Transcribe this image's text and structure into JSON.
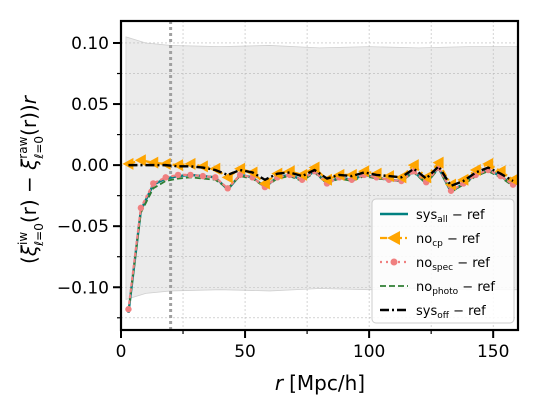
{
  "chart_data": {
    "type": "line",
    "xlabel_var": "r",
    "xlabel_unit": "[Mpc/h]",
    "ylabel_parts": {
      "open": "(",
      "xi": "ξ",
      "sup1": "iw",
      "sub1": "ℓ=0",
      "mid": "(r) − ",
      "sup2": "raw",
      "sub2": "ℓ=0",
      "close": "(r))",
      "r": "r"
    },
    "xlim": [
      0,
      160
    ],
    "ylim": [
      -0.135,
      0.118
    ],
    "xticks": [
      0,
      50,
      100,
      150
    ],
    "xtick_labels": [
      "0",
      "50",
      "100",
      "150"
    ],
    "yticks": [
      0.1,
      0.05,
      0.0,
      -0.05,
      -0.1
    ],
    "ytick_labels": [
      "0.10",
      "0.05",
      "0.00",
      "−0.05",
      "−0.10"
    ],
    "grid": true,
    "legend_position": "lower-right",
    "vline_x": 20,
    "band": {
      "x": [
        2,
        10,
        20,
        40,
        60,
        80,
        100,
        120,
        140,
        160
      ],
      "upper": [
        0.105,
        0.1,
        0.098,
        0.097,
        0.098,
        0.096,
        0.097,
        0.096,
        0.097,
        0.097
      ],
      "lower": [
        -0.11,
        -0.105,
        -0.103,
        -0.102,
        -0.103,
        -0.101,
        -0.102,
        -0.101,
        -0.102,
        -0.102
      ]
    },
    "x": [
      3,
      8,
      13,
      18,
      23,
      28,
      33,
      38,
      43,
      48,
      53,
      58,
      63,
      68,
      73,
      78,
      83,
      88,
      93,
      98,
      103,
      108,
      113,
      118,
      123,
      128,
      133,
      138,
      143,
      148,
      153,
      158
    ],
    "series": [
      {
        "name": "sys_all − ref",
        "label_main": "sys",
        "label_sub": "all",
        "label_tail": " − ref",
        "color": "#008080",
        "style": "solid",
        "values": [
          -0.121,
          -0.037,
          -0.016,
          -0.011,
          -0.009,
          -0.008,
          -0.009,
          -0.01,
          -0.02,
          -0.008,
          -0.01,
          -0.018,
          -0.01,
          -0.008,
          -0.012,
          -0.005,
          -0.015,
          -0.01,
          -0.012,
          -0.008,
          -0.01,
          -0.012,
          -0.013,
          -0.005,
          -0.015,
          -0.002,
          -0.022,
          -0.015,
          -0.008,
          -0.004,
          -0.009,
          -0.016
        ]
      },
      {
        "name": "no_cp − ref",
        "label_main": "no",
        "label_sub": "cp",
        "label_tail": " − ref",
        "color": "#FFA500",
        "style": "dashdot-triangle",
        "values": [
          0.001,
          0.004,
          0.002,
          0.001,
          0.0,
          0.001,
          -0.001,
          -0.003,
          -0.01,
          -0.003,
          -0.006,
          -0.015,
          -0.007,
          -0.005,
          -0.008,
          -0.002,
          -0.012,
          -0.008,
          -0.008,
          -0.005,
          -0.007,
          -0.009,
          -0.01,
          0.0,
          -0.01,
          0.002,
          -0.016,
          -0.012,
          -0.004,
          0.001,
          -0.005,
          -0.012
        ]
      },
      {
        "name": "no_spec − ref",
        "label_main": "no",
        "label_sub": "spec",
        "label_tail": " − ref",
        "color": "#F08080",
        "style": "dotted-circle",
        "values": [
          -0.118,
          -0.035,
          -0.015,
          -0.01,
          -0.008,
          -0.008,
          -0.009,
          -0.01,
          -0.019,
          -0.008,
          -0.01,
          -0.018,
          -0.01,
          -0.008,
          -0.012,
          -0.005,
          -0.015,
          -0.01,
          -0.012,
          -0.008,
          -0.01,
          -0.012,
          -0.013,
          -0.005,
          -0.014,
          -0.002,
          -0.021,
          -0.015,
          -0.008,
          -0.004,
          -0.009,
          -0.016
        ]
      },
      {
        "name": "no_photo − ref",
        "label_main": "no",
        "label_sub": "photo",
        "label_tail": " − ref",
        "color": "#2E7D32",
        "style": "dashed",
        "values": [
          -0.12,
          -0.039,
          -0.019,
          -0.013,
          -0.011,
          -0.01,
          -0.011,
          -0.012,
          -0.019,
          -0.009,
          -0.011,
          -0.018,
          -0.011,
          -0.009,
          -0.013,
          -0.006,
          -0.015,
          -0.011,
          -0.013,
          -0.009,
          -0.011,
          -0.012,
          -0.013,
          -0.006,
          -0.015,
          -0.003,
          -0.022,
          -0.016,
          -0.009,
          -0.005,
          -0.01,
          -0.017
        ]
      },
      {
        "name": "sys_off − ref",
        "label_main": "sys",
        "label_sub": "off",
        "label_tail": " − ref",
        "color": "#000000",
        "style": "dashdot",
        "values": [
          0.0,
          0.0,
          0.0,
          0.0,
          -0.001,
          -0.001,
          -0.002,
          -0.004,
          -0.008,
          -0.004,
          -0.006,
          -0.012,
          -0.007,
          -0.006,
          -0.009,
          -0.004,
          -0.011,
          -0.008,
          -0.009,
          -0.006,
          -0.008,
          -0.009,
          -0.01,
          -0.003,
          -0.011,
          -0.001,
          -0.017,
          -0.013,
          -0.006,
          -0.002,
          -0.007,
          -0.013
        ]
      }
    ]
  }
}
